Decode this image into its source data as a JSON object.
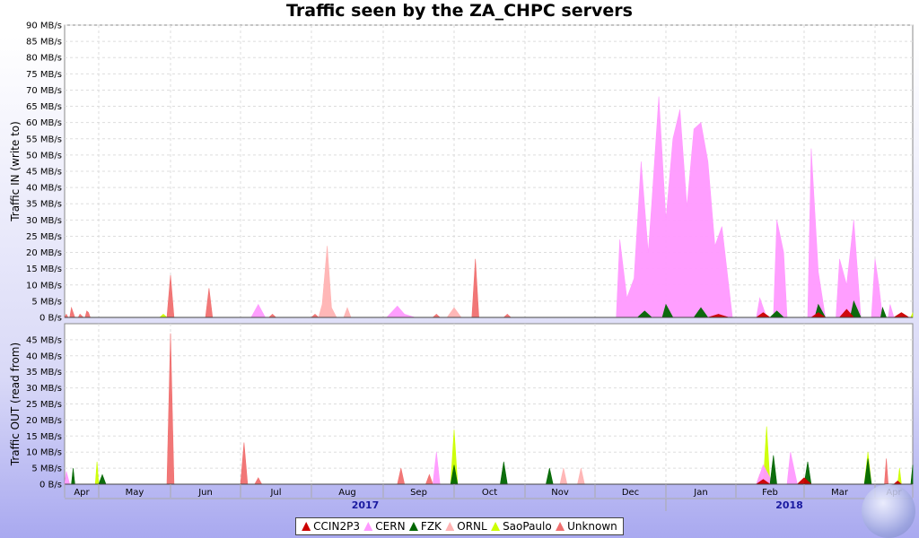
{
  "title": "Traffic seen by the ZA_CHPC servers",
  "colors": {
    "CCIN2P3": "#cc0000",
    "CERN": "#ff99ff",
    "FZK": "#006600",
    "ORNL": "#ffb3b3",
    "SaoPaulo": "#ccff00",
    "Unknown": "#f07070"
  },
  "legend": [
    {
      "name": "CCIN2P3",
      "color": "#cc0000"
    },
    {
      "name": "CERN",
      "color": "#ff99ff"
    },
    {
      "name": "FZK",
      "color": "#006600"
    },
    {
      "name": "ORNL",
      "color": "#ffb3b3"
    },
    {
      "name": "SaoPaulo",
      "color": "#ccff00"
    },
    {
      "name": "Unknown",
      "color": "#f07070"
    }
  ],
  "chart_data": [
    {
      "type": "area",
      "ylabel": "Traffic IN (write to)",
      "ylim": [
        0,
        90
      ],
      "unit": "MB/s",
      "yticks": [
        "0 B/s",
        "5 MB/s",
        "10 MB/s",
        "15 MB/s",
        "20 MB/s",
        "25 MB/s",
        "30 MB/s",
        "35 MB/s",
        "40 MB/s",
        "45 MB/s",
        "50 MB/s",
        "55 MB/s",
        "60 MB/s",
        "65 MB/s",
        "70 MB/s",
        "75 MB/s",
        "80 MB/s",
        "85 MB/s",
        "90 MB/s"
      ],
      "x_months": [
        "Apr",
        "May",
        "Jun",
        "Jul",
        "Aug",
        "Sep",
        "Oct",
        "Nov",
        "Dec",
        "Jan",
        "Feb",
        "Mar",
        "Apr"
      ],
      "x_years": [
        "2017",
        "2018"
      ],
      "grid": true,
      "series": [
        {
          "name": "CCIN2P3",
          "points": [
            [
              9.6,
              0
            ],
            [
              9.75,
              1
            ],
            [
              9.9,
              0
            ],
            [
              10.3,
              0
            ],
            [
              10.4,
              1.5
            ],
            [
              10.5,
              0
            ],
            [
              11.1,
              0
            ],
            [
              11.2,
              1.5
            ],
            [
              11.3,
              0
            ],
            [
              11.5,
              0
            ],
            [
              11.6,
              2.5
            ],
            [
              11.7,
              0
            ],
            [
              12.5,
              0
            ],
            [
              12.7,
              1.5
            ],
            [
              12.9,
              0
            ]
          ]
        },
        {
          "name": "CERN",
          "points": [
            [
              3.15,
              0
            ],
            [
              3.25,
              4
            ],
            [
              3.35,
              0
            ],
            [
              5.05,
              0
            ],
            [
              5.2,
              3.5
            ],
            [
              5.3,
              1
            ],
            [
              5.45,
              0
            ],
            [
              8.3,
              0
            ],
            [
              8.35,
              24
            ],
            [
              8.45,
              6
            ],
            [
              8.55,
              12
            ],
            [
              8.65,
              48
            ],
            [
              8.75,
              20
            ],
            [
              8.8,
              35
            ],
            [
              8.9,
              68
            ],
            [
              9.0,
              30
            ],
            [
              9.1,
              55
            ],
            [
              9.2,
              64
            ],
            [
              9.3,
              34
            ],
            [
              9.4,
              58
            ],
            [
              9.5,
              60
            ],
            [
              9.6,
              48
            ],
            [
              9.7,
              22
            ],
            [
              9.8,
              28
            ],
            [
              9.95,
              0
            ],
            [
              10.3,
              0
            ],
            [
              10.35,
              6
            ],
            [
              10.45,
              0
            ],
            [
              10.55,
              0
            ],
            [
              10.6,
              30
            ],
            [
              10.7,
              20
            ],
            [
              10.75,
              0
            ],
            [
              11.05,
              0
            ],
            [
              11.1,
              52
            ],
            [
              11.2,
              14
            ],
            [
              11.3,
              0
            ],
            [
              11.45,
              0
            ],
            [
              11.5,
              18
            ],
            [
              11.6,
              10
            ],
            [
              11.7,
              30
            ],
            [
              11.8,
              0
            ],
            [
              11.95,
              0
            ],
            [
              12.0,
              18
            ],
            [
              12.1,
              10
            ],
            [
              12.2,
              0
            ],
            [
              12.35,
              0
            ],
            [
              12.4,
              4
            ],
            [
              12.5,
              0
            ]
          ]
        },
        {
          "name": "FZK",
          "points": [
            [
              8.6,
              0
            ],
            [
              8.7,
              2
            ],
            [
              8.8,
              0
            ],
            [
              8.95,
              0
            ],
            [
              9.0,
              4
            ],
            [
              9.1,
              0
            ],
            [
              9.4,
              0
            ],
            [
              9.5,
              3
            ],
            [
              9.6,
              0
            ],
            [
              10.5,
              0
            ],
            [
              10.6,
              2
            ],
            [
              10.7,
              0
            ],
            [
              11.15,
              0
            ],
            [
              11.2,
              4
            ],
            [
              11.3,
              0
            ],
            [
              11.65,
              0
            ],
            [
              11.7,
              5
            ],
            [
              11.8,
              0
            ],
            [
              12.15,
              0
            ],
            [
              12.2,
              3
            ],
            [
              12.3,
              0
            ]
          ]
        },
        {
          "name": "ORNL",
          "points": [
            [
              4.1,
              0
            ],
            [
              4.15,
              4
            ],
            [
              4.22,
              22
            ],
            [
              4.28,
              3
            ],
            [
              4.35,
              0
            ],
            [
              4.45,
              0
            ],
            [
              4.5,
              3
            ],
            [
              4.55,
              0
            ],
            [
              5.9,
              0
            ],
            [
              6.0,
              3
            ],
            [
              6.1,
              0
            ]
          ]
        },
        {
          "name": "SaoPaulo",
          "points": [
            [
              1.85,
              0
            ],
            [
              1.9,
              1
            ],
            [
              1.95,
              0
            ],
            [
              12.95,
              0
            ],
            [
              13.0,
              1.5
            ],
            [
              13.05,
              0
            ]
          ]
        },
        {
          "name": "Unknown",
          "points": [
            [
              0.0,
              0
            ],
            [
              0.05,
              1
            ],
            [
              0.1,
              0
            ],
            [
              0.15,
              0
            ],
            [
              0.2,
              3
            ],
            [
              0.3,
              0
            ],
            [
              0.4,
              0
            ],
            [
              0.45,
              1
            ],
            [
              0.55,
              0
            ],
            [
              0.6,
              0
            ],
            [
              0.65,
              2
            ],
            [
              0.7,
              1.5
            ],
            [
              0.75,
              0
            ],
            [
              1.95,
              0
            ],
            [
              2.0,
              13
            ],
            [
              2.05,
              0
            ],
            [
              2.5,
              0
            ],
            [
              2.55,
              9
            ],
            [
              2.6,
              0
            ],
            [
              3.4,
              0
            ],
            [
              3.45,
              1
            ],
            [
              3.5,
              0
            ],
            [
              4.0,
              0
            ],
            [
              4.05,
              1
            ],
            [
              4.1,
              0
            ],
            [
              5.7,
              0
            ],
            [
              5.75,
              1
            ],
            [
              5.8,
              0
            ],
            [
              6.25,
              0
            ],
            [
              6.3,
              18
            ],
            [
              6.35,
              0
            ],
            [
              6.7,
              0
            ],
            [
              6.75,
              1
            ],
            [
              6.8,
              0
            ],
            [
              12.7,
              0
            ],
            [
              12.75,
              1
            ],
            [
              12.8,
              0
            ]
          ]
        }
      ]
    },
    {
      "type": "area",
      "ylabel": "Traffic OUT (read from)",
      "ylim": [
        0,
        50
      ],
      "unit": "MB/s",
      "yticks": [
        "0 B/s",
        "5 MB/s",
        "10 MB/s",
        "15 MB/s",
        "20 MB/s",
        "25 MB/s",
        "30 MB/s",
        "35 MB/s",
        "40 MB/s",
        "45 MB/s"
      ],
      "x_months": [
        "Apr",
        "May",
        "Jun",
        "Jul",
        "Aug",
        "Sep",
        "Oct",
        "Nov",
        "Dec",
        "Jan",
        "Feb",
        "Mar",
        "Apr"
      ],
      "x_years": [
        "2017",
        "2018"
      ],
      "grid": true,
      "series": [
        {
          "name": "CCIN2P3",
          "points": [
            [
              10.3,
              0
            ],
            [
              10.4,
              1.5
            ],
            [
              10.5,
              0
            ],
            [
              10.9,
              0
            ],
            [
              11.0,
              2
            ],
            [
              11.1,
              0
            ],
            [
              12.5,
              0
            ],
            [
              12.6,
              1
            ],
            [
              12.7,
              0
            ]
          ]
        },
        {
          "name": "CERN",
          "points": [
            [
              0.0,
              0
            ],
            [
              0.05,
              4
            ],
            [
              0.15,
              0
            ],
            [
              5.7,
              0
            ],
            [
              5.75,
              10
            ],
            [
              5.8,
              0
            ],
            [
              10.3,
              0
            ],
            [
              10.4,
              6
            ],
            [
              10.5,
              2
            ],
            [
              10.6,
              0
            ],
            [
              10.75,
              0
            ],
            [
              10.8,
              10
            ],
            [
              10.9,
              0
            ]
          ]
        },
        {
          "name": "FZK",
          "points": [
            [
              0.2,
              0
            ],
            [
              0.25,
              5
            ],
            [
              0.3,
              0
            ],
            [
              1.0,
              0
            ],
            [
              1.05,
              3
            ],
            [
              1.1,
              0
            ],
            [
              5.95,
              0
            ],
            [
              6.0,
              6
            ],
            [
              6.05,
              0
            ],
            [
              6.65,
              0
            ],
            [
              6.7,
              7
            ],
            [
              6.75,
              0
            ],
            [
              7.3,
              0
            ],
            [
              7.35,
              5
            ],
            [
              7.4,
              0
            ],
            [
              10.5,
              0
            ],
            [
              10.55,
              9
            ],
            [
              10.6,
              0
            ],
            [
              11.0,
              0
            ],
            [
              11.05,
              7
            ],
            [
              11.1,
              0
            ],
            [
              11.85,
              0
            ],
            [
              11.9,
              8
            ],
            [
              11.95,
              0
            ],
            [
              12.95,
              0
            ],
            [
              13.0,
              6
            ],
            [
              13.05,
              0
            ]
          ]
        },
        {
          "name": "ORNL",
          "points": [
            [
              7.5,
              0
            ],
            [
              7.55,
              5
            ],
            [
              7.6,
              0
            ],
            [
              7.75,
              0
            ],
            [
              7.8,
              5
            ],
            [
              7.85,
              0
            ]
          ]
        },
        {
          "name": "SaoPaulo",
          "points": [
            [
              0.9,
              0
            ],
            [
              0.95,
              7
            ],
            [
              1.0,
              0
            ],
            [
              5.95,
              0
            ],
            [
              6.0,
              17
            ],
            [
              6.05,
              0
            ],
            [
              10.4,
              0
            ],
            [
              10.45,
              18
            ],
            [
              10.5,
              0
            ],
            [
              11.85,
              0
            ],
            [
              11.9,
              10
            ],
            [
              11.95,
              0
            ],
            [
              12.6,
              0
            ],
            [
              12.65,
              5
            ],
            [
              12.7,
              0
            ]
          ]
        },
        {
          "name": "Unknown",
          "points": [
            [
              1.95,
              0
            ],
            [
              2.0,
              47
            ],
            [
              2.05,
              0
            ],
            [
              3.0,
              0
            ],
            [
              3.05,
              13
            ],
            [
              3.1,
              0
            ],
            [
              3.2,
              0
            ],
            [
              3.25,
              2
            ],
            [
              3.3,
              0
            ],
            [
              5.2,
              0
            ],
            [
              5.25,
              5
            ],
            [
              5.3,
              0
            ],
            [
              5.6,
              0
            ],
            [
              5.65,
              3
            ],
            [
              5.7,
              0
            ],
            [
              10.3,
              0
            ],
            [
              10.35,
              3
            ],
            [
              10.4,
              0
            ],
            [
              12.25,
              0
            ],
            [
              12.3,
              8
            ],
            [
              12.35,
              0
            ]
          ]
        }
      ]
    }
  ]
}
